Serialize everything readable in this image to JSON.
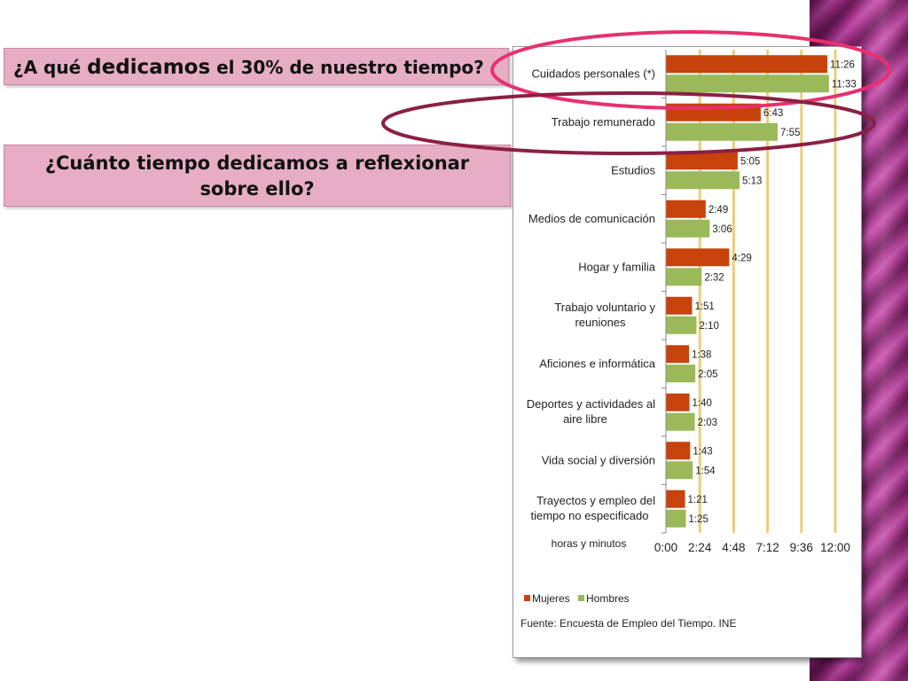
{
  "banners": {
    "q1_prefix": "¿A qué ",
    "q1_big": "dedicamos",
    "q1_suffix": " el 30% de nuestro tiempo?",
    "q2_line1": "¿Cuánto tiempo dedicamos a reflexionar",
    "q2_line2": "sobre ello?"
  },
  "colors": {
    "mujeres": "#c8420c",
    "hombres": "#9aba59",
    "gridline": "#e7cf7d",
    "highlight_ring_1": "#e8306e",
    "highlight_ring_2": "#8b1f45",
    "banner_fill": "#e6adc5"
  },
  "chart_data": {
    "type": "bar",
    "orientation": "horizontal",
    "categories": [
      [
        "Cuidados personales (*)"
      ],
      [
        "Trabajo remunerado"
      ],
      [
        "Estudios"
      ],
      [
        "Medios de comunicación"
      ],
      [
        "Hogar y familia"
      ],
      [
        "Trabajo voluntario y",
        "reuniones"
      ],
      [
        "Aficiones e informática"
      ],
      [
        "Deportes y actividades al",
        "aire libre"
      ],
      [
        "Vida social y diversión"
      ],
      [
        "Trayectos y empleo del",
        "tiempo no especificado"
      ]
    ],
    "series": [
      {
        "name": "Mujeres",
        "values": [
          "11:26",
          "6:43",
          "5:05",
          "2:49",
          "4:29",
          "1:51",
          "1:38",
          "1:40",
          "1:43",
          "1:21"
        ]
      },
      {
        "name": "Hombres",
        "values": [
          "11:33",
          "7:55",
          "5:13",
          "3:06",
          "2:32",
          "2:10",
          "2:05",
          "2:03",
          "1:54",
          "1:25"
        ]
      }
    ],
    "xlabel": "horas y minutos",
    "xticks": [
      "0:00",
      "2:24",
      "4:48",
      "7:12",
      "9:36",
      "12:00"
    ],
    "xlim": [
      "0:00",
      "12:00"
    ],
    "grid": "vertical",
    "legend_position": "bottom-left",
    "source": "Fuente: Encuesta de Empleo del Tiempo. INE",
    "highlighted_categories": [
      "Cuidados personales (*)",
      "Trabajo remunerado"
    ]
  }
}
